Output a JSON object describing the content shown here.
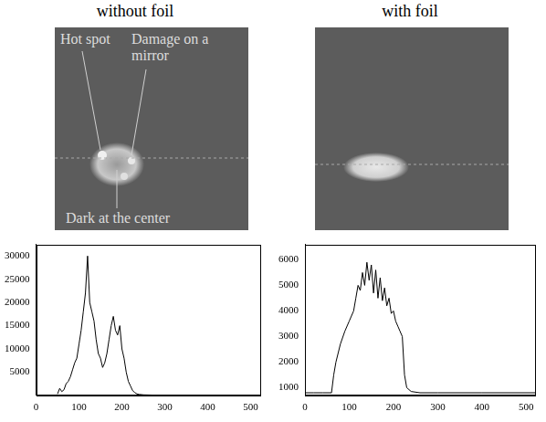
{
  "chart_data": [
    {
      "type": "line",
      "title": "without foil",
      "annotations": [
        "Hot spot",
        "Damage on a mirror",
        "Dark at the center"
      ],
      "color": "#000000",
      "grid": false,
      "x": [
        50,
        55,
        60,
        65,
        70,
        75,
        80,
        85,
        90,
        95,
        100,
        105,
        110,
        115,
        120,
        125,
        130,
        135,
        140,
        145,
        150,
        155,
        160,
        165,
        170,
        175,
        180,
        185,
        190,
        195,
        200,
        205,
        210,
        215,
        220,
        225,
        230,
        235,
        240,
        250,
        300,
        400,
        520
      ],
      "values": [
        300,
        1500,
        800,
        1200,
        2500,
        3000,
        4000,
        5500,
        7000,
        8000,
        11000,
        14000,
        18000,
        22000,
        30000,
        20000,
        18000,
        16000,
        12000,
        9000,
        8000,
        6000,
        7000,
        9000,
        12000,
        15000,
        17000,
        14000,
        13000,
        15000,
        10000,
        8000,
        5000,
        3000,
        2000,
        1000,
        600,
        300,
        200,
        100,
        0,
        0,
        0
      ],
      "xlim": [
        0,
        520
      ],
      "xticks": [
        0,
        100,
        200,
        300,
        400,
        500
      ],
      "ylim": [
        0,
        32500
      ],
      "yticks": [
        5000,
        10000,
        15000,
        20000,
        25000,
        30000
      ]
    },
    {
      "type": "line",
      "title": "with foil",
      "color": "#000000",
      "grid": false,
      "x": [
        0,
        20,
        40,
        60,
        65,
        70,
        80,
        90,
        100,
        110,
        115,
        120,
        125,
        130,
        135,
        140,
        145,
        150,
        155,
        160,
        165,
        170,
        175,
        180,
        185,
        190,
        195,
        200,
        205,
        210,
        215,
        220,
        225,
        230,
        240,
        260,
        300,
        400,
        520
      ],
      "values": [
        800,
        800,
        800,
        800,
        1500,
        2000,
        2700,
        3200,
        3600,
        4000,
        4500,
        5000,
        4800,
        5500,
        5000,
        5900,
        5200,
        5800,
        4700,
        5600,
        4500,
        5300,
        4400,
        4900,
        4200,
        4500,
        3900,
        4000,
        3600,
        3400,
        3200,
        3000,
        1500,
        1000,
        850,
        800,
        800,
        800,
        800
      ],
      "xlim": [
        0,
        520
      ],
      "xticks": [
        0,
        100,
        200,
        300,
        400,
        500
      ],
      "ylim": [
        700,
        6600
      ],
      "yticks": [
        1000,
        2000,
        3000,
        4000,
        5000,
        6000
      ]
    }
  ]
}
